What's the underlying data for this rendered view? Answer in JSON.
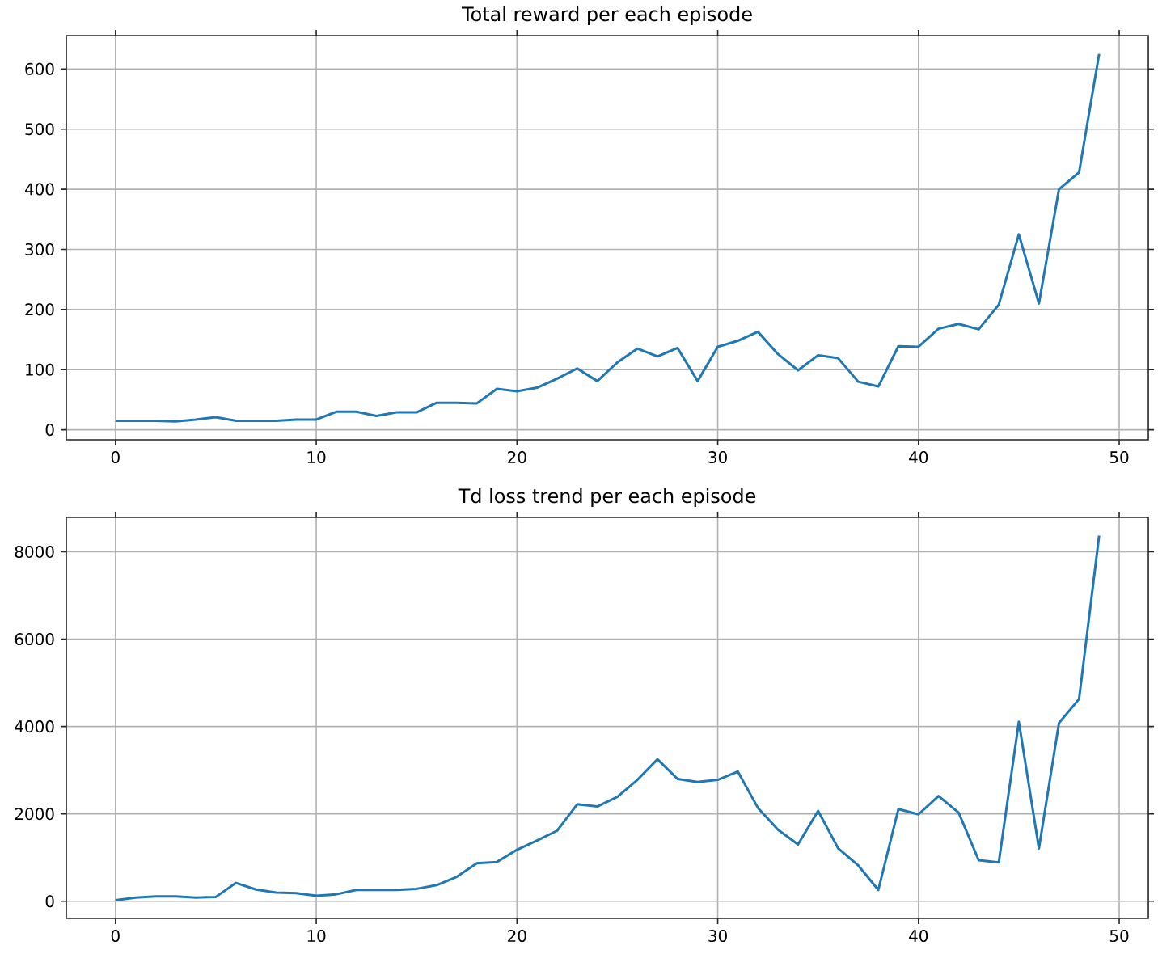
{
  "chart_data": [
    {
      "type": "line",
      "title": "Total reward per each episode",
      "x": [
        0,
        1,
        2,
        3,
        4,
        5,
        6,
        7,
        8,
        9,
        10,
        11,
        12,
        13,
        14,
        15,
        16,
        17,
        18,
        19,
        20,
        21,
        22,
        23,
        24,
        25,
        26,
        27,
        28,
        29,
        30,
        31,
        32,
        33,
        34,
        35,
        36,
        37,
        38,
        39,
        40,
        41,
        42,
        43,
        44,
        45,
        46,
        47,
        48,
        49
      ],
      "series": [
        {
          "color": "#1f77b4",
          "values": [
            15,
            15,
            15,
            14,
            17,
            21,
            15,
            15,
            15,
            17,
            17,
            30,
            30,
            23,
            29,
            29,
            45,
            45,
            44,
            68,
            64,
            70,
            85,
            102,
            81,
            112,
            135,
            122,
            136,
            81,
            138,
            148,
            163,
            126,
            99,
            124,
            119,
            80,
            72,
            139,
            138,
            168,
            176,
            167,
            208,
            325,
            210,
            400,
            428,
            625
          ]
        }
      ],
      "xlim": [
        -2.45,
        51.45
      ],
      "ylim": [
        -16.6,
        655.6
      ],
      "xticks": [
        0,
        10,
        20,
        30,
        40,
        50
      ],
      "yticks": [
        0,
        100,
        200,
        300,
        400,
        500,
        600
      ],
      "grid": true
    },
    {
      "type": "line",
      "title": "Td loss trend per each episode",
      "x": [
        0,
        1,
        2,
        3,
        4,
        5,
        6,
        7,
        8,
        9,
        10,
        11,
        12,
        13,
        14,
        15,
        16,
        17,
        18,
        19,
        20,
        21,
        22,
        23,
        24,
        25,
        26,
        27,
        28,
        29,
        30,
        31,
        32,
        33,
        34,
        35,
        36,
        37,
        38,
        39,
        40,
        41,
        42,
        43,
        44,
        45,
        46,
        47,
        48,
        49
      ],
      "series": [
        {
          "color": "#1f77b4",
          "values": [
            25,
            85,
            110,
            110,
            85,
            100,
            420,
            270,
            200,
            185,
            125,
            160,
            260,
            260,
            260,
            285,
            370,
            560,
            870,
            900,
            1180,
            1390,
            1615,
            2220,
            2170,
            2390,
            2780,
            3250,
            2800,
            2730,
            2780,
            2970,
            2140,
            1640,
            1300,
            2070,
            1210,
            820,
            260,
            2110,
            1990,
            2410,
            2030,
            940,
            890,
            4110,
            1210,
            4080,
            4630,
            8370
          ]
        }
      ],
      "xlim": [
        -2.45,
        51.45
      ],
      "ylim": [
        -392,
        8787
      ],
      "xticks": [
        0,
        10,
        20,
        30,
        40,
        50
      ],
      "yticks": [
        0,
        2000,
        4000,
        6000,
        8000
      ],
      "grid": true
    }
  ]
}
